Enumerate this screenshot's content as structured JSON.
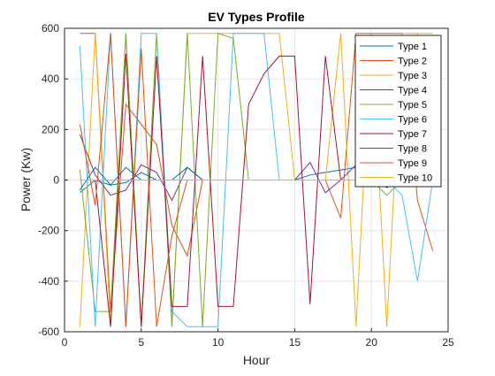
{
  "chart_data": {
    "type": "line",
    "title": "EV Types Profile",
    "xlabel": "Hour",
    "ylabel": "Power (Kw)",
    "xlim": [
      0,
      25
    ],
    "ylim": [
      -600,
      600
    ],
    "xticks": [
      0,
      5,
      10,
      15,
      20,
      25
    ],
    "yticks": [
      -600,
      -400,
      -200,
      0,
      200,
      400,
      600
    ],
    "grid": true,
    "legend_position": "top-right",
    "x": [
      1,
      2,
      3,
      4,
      5,
      6,
      7,
      8,
      9,
      10,
      11,
      12,
      13,
      14,
      15,
      16,
      17,
      18,
      19,
      20,
      21,
      22,
      23,
      24
    ],
    "series": [
      {
        "name": "Type 1",
        "color": "#0072BD",
        "values": [
          -50,
          0,
          -20,
          -10,
          30,
          0,
          0,
          0,
          0,
          0,
          0,
          0,
          0,
          0,
          0,
          20,
          30,
          40,
          50,
          30,
          0,
          0,
          20,
          0
        ]
      },
      {
        "name": "Type 2",
        "color": "#D95319",
        "values": [
          580,
          580,
          -520,
          300,
          220,
          140,
          -180,
          -300,
          0,
          0,
          0,
          0,
          0,
          0,
          0,
          0,
          0,
          -150,
          580,
          580,
          580,
          580,
          -80,
          -280
        ]
      },
      {
        "name": "Type 3",
        "color": "#EDB120",
        "values": [
          -580,
          580,
          -580,
          580,
          -580,
          580,
          -580,
          580,
          580,
          580,
          580,
          580,
          580,
          580,
          0,
          0,
          0,
          580,
          -580,
          580,
          -580,
          580,
          580,
          0
        ]
      },
      {
        "name": "Type 4",
        "color": "#7E2F8E",
        "values": [
          180,
          20,
          -60,
          -40,
          60,
          30,
          -80,
          50,
          0,
          0,
          0,
          0,
          0,
          0,
          0,
          70,
          -50,
          0,
          60,
          0,
          -30,
          0,
          0,
          0
        ]
      },
      {
        "name": "Type 5",
        "color": "#77AC30",
        "values": [
          40,
          -520,
          -520,
          580,
          -580,
          580,
          -580,
          580,
          -580,
          580,
          560,
          0,
          0,
          0,
          0,
          0,
          0,
          0,
          0,
          0,
          -60,
          0,
          0,
          0
        ]
      },
      {
        "name": "Type 6",
        "color": "#4DBEEE",
        "values": [
          530,
          -580,
          580,
          -580,
          580,
          580,
          -520,
          -580,
          -580,
          -580,
          580,
          580,
          580,
          0,
          0,
          0,
          0,
          0,
          0,
          0,
          0,
          -60,
          -400,
          0
        ]
      },
      {
        "name": "Type 7",
        "color": "#A2142F",
        "values": [
          0,
          0,
          -580,
          500,
          -580,
          490,
          -500,
          -500,
          490,
          -500,
          -500,
          300,
          420,
          490,
          490,
          -490,
          490,
          0,
          0,
          0,
          0,
          0,
          0,
          0
        ]
      },
      {
        "name": "Type 8",
        "color": "#0072BD",
        "values": [
          -40,
          50,
          -20,
          50,
          0,
          0,
          0,
          50,
          0,
          0,
          0,
          0,
          0,
          0,
          0,
          0,
          0,
          0,
          0,
          0,
          0,
          0,
          0,
          0
        ]
      },
      {
        "name": "Type 9",
        "color": "#D95319",
        "values": [
          220,
          -100,
          580,
          -580,
          520,
          -580,
          -220,
          0,
          0,
          0,
          0,
          0,
          0,
          0,
          0,
          0,
          0,
          0,
          0,
          0,
          0,
          0,
          0,
          0
        ]
      },
      {
        "name": "Type 10",
        "color": "#EDB120",
        "values": [
          0,
          0,
          0,
          0,
          0,
          0,
          0,
          0,
          0,
          0,
          0,
          0,
          0,
          0,
          0,
          0,
          0,
          0,
          0,
          0,
          0,
          0,
          580,
          580
        ]
      }
    ]
  }
}
